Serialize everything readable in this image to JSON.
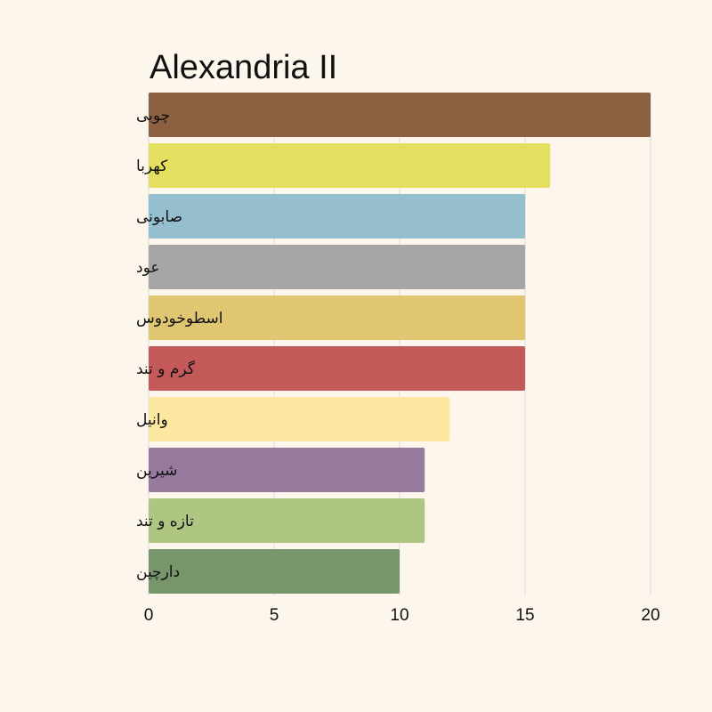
{
  "chart_data": {
    "type": "bar",
    "orientation": "horizontal",
    "title": "Alexandria II",
    "xlabel": "",
    "ylabel": "",
    "categories": [
      "چوبی",
      "کهربا",
      "صابونی",
      "عود",
      "اسطوخودوس",
      "گرم و تند",
      "وانیل",
      "شیرین",
      "تازه و تند",
      "دارچین"
    ],
    "values": [
      20,
      16,
      15,
      15,
      15,
      15,
      12,
      11,
      11,
      10
    ],
    "colors": [
      "#8b6142",
      "#e4df5e",
      "#95bfcf",
      "#a6a6a6",
      "#e1c672",
      "#c4595a",
      "#fde8a1",
      "#987a9e",
      "#afc582",
      "#77966c"
    ],
    "xlim": [
      0,
      20
    ],
    "xticks": [
      "0",
      "5",
      "10",
      "15",
      "20"
    ],
    "grid": "vertical",
    "legend": "none"
  }
}
